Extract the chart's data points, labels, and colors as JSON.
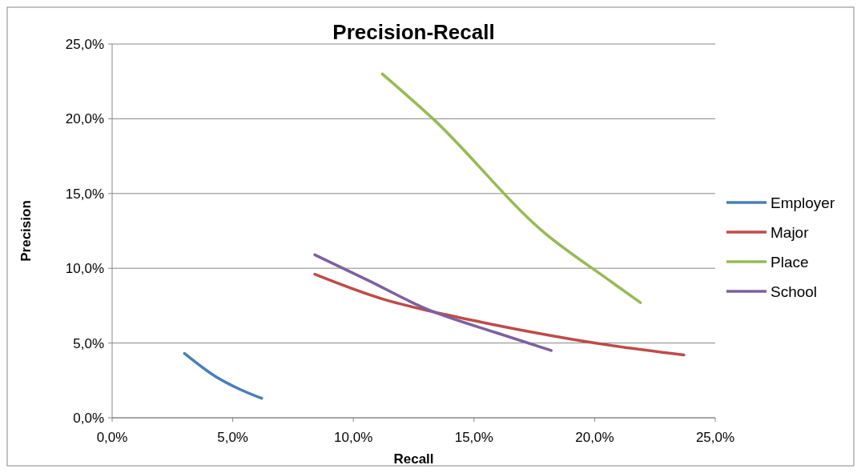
{
  "chart_data": {
    "type": "line",
    "title": "Precision-Recall",
    "xlabel": "Recall",
    "ylabel": "Precision",
    "xlim": [
      0,
      25
    ],
    "ylim": [
      0,
      25
    ],
    "xticks": [
      {
        "value": 0,
        "label": "0,0%"
      },
      {
        "value": 5,
        "label": "5,0%"
      },
      {
        "value": 10,
        "label": "10,0%"
      },
      {
        "value": 15,
        "label": "15,0%"
      },
      {
        "value": 20,
        "label": "20,0%"
      },
      {
        "value": 25,
        "label": "25,0%"
      }
    ],
    "yticks": [
      {
        "value": 0,
        "label": "0,0%"
      },
      {
        "value": 5,
        "label": "5,0%"
      },
      {
        "value": 10,
        "label": "10,0%"
      },
      {
        "value": 15,
        "label": "15,0%"
      },
      {
        "value": 20,
        "label": "20,0%"
      },
      {
        "value": 25,
        "label": "25,0%"
      }
    ],
    "grid": "y",
    "legend": "right",
    "marker": "none",
    "line_style": "solid",
    "series": [
      {
        "name": "Employer",
        "color": "#4a7ebb",
        "x": [
          3.0,
          4.25,
          5.3,
          6.2
        ],
        "values": [
          4.3,
          2.8,
          1.9,
          1.3
        ]
      },
      {
        "name": "Major",
        "color": "#be4b48",
        "x": [
          8.4,
          11.3,
          13.0,
          15.3,
          17.5,
          20.0,
          23.7
        ],
        "values": [
          9.6,
          7.9,
          7.2,
          6.4,
          5.7,
          5.0,
          4.2
        ]
      },
      {
        "name": "Place",
        "color": "#98b954",
        "x": [
          11.2,
          13.3,
          17.9,
          20.6,
          21.9
        ],
        "values": [
          23.0,
          20.0,
          12.4,
          9.2,
          7.7
        ]
      },
      {
        "name": "School",
        "color": "#7d60a0",
        "x": [
          8.4,
          10.6,
          13.0,
          15.9,
          18.2
        ],
        "values": [
          10.9,
          9.2,
          7.3,
          5.7,
          4.5
        ]
      }
    ]
  }
}
